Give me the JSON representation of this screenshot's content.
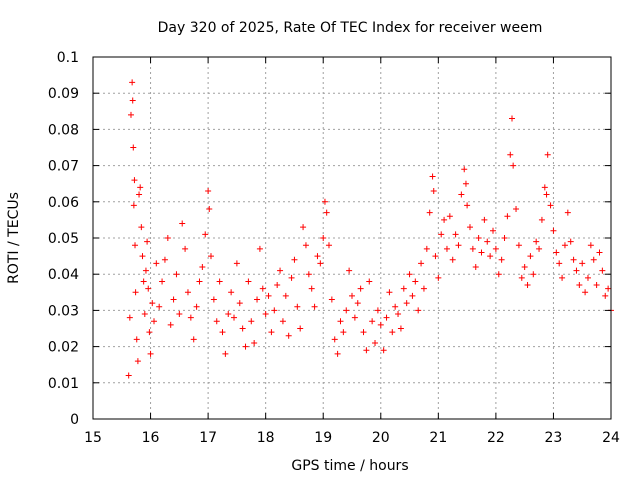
{
  "chart_data": {
    "type": "scatter",
    "title": "Day 320 of 2025, Rate Of TEC Index for receiver weem",
    "xlabel": "GPS time / hours",
    "ylabel": "ROTI / TECUs",
    "xlim": [
      15,
      24
    ],
    "ylim": [
      0,
      0.1
    ],
    "x_ticks": [
      "15",
      "16",
      "17",
      "18",
      "19",
      "20",
      "21",
      "22",
      "23",
      "24"
    ],
    "y_ticks": [
      "0",
      "0.01",
      "0.02",
      "0.03",
      "0.04",
      "0.05",
      "0.06",
      "0.07",
      "0.08",
      "0.09",
      "0.1"
    ],
    "grid": true,
    "marker": "+",
    "color": "#ff0000",
    "series": [
      {
        "points": [
          [
            15.62,
            0.012
          ],
          [
            15.64,
            0.028
          ],
          [
            15.66,
            0.084
          ],
          [
            15.68,
            0.093
          ],
          [
            15.69,
            0.088
          ],
          [
            15.7,
            0.075
          ],
          [
            15.71,
            0.059
          ],
          [
            15.72,
            0.066
          ],
          [
            15.73,
            0.048
          ],
          [
            15.74,
            0.035
          ],
          [
            15.76,
            0.022
          ],
          [
            15.78,
            0.016
          ],
          [
            15.8,
            0.062
          ],
          [
            15.82,
            0.064
          ],
          [
            15.84,
            0.053
          ],
          [
            15.86,
            0.045
          ],
          [
            15.88,
            0.038
          ],
          [
            15.9,
            0.029
          ],
          [
            15.92,
            0.041
          ],
          [
            15.94,
            0.049
          ],
          [
            15.96,
            0.036
          ],
          [
            15.98,
            0.024
          ],
          [
            16.0,
            0.018
          ],
          [
            16.03,
            0.032
          ],
          [
            16.06,
            0.027
          ],
          [
            16.1,
            0.043
          ],
          [
            16.15,
            0.031
          ],
          [
            16.2,
            0.038
          ],
          [
            16.25,
            0.044
          ],
          [
            16.3,
            0.05
          ],
          [
            16.35,
            0.026
          ],
          [
            16.4,
            0.033
          ],
          [
            16.45,
            0.04
          ],
          [
            16.5,
            0.029
          ],
          [
            16.55,
            0.054
          ],
          [
            16.6,
            0.047
          ],
          [
            16.65,
            0.035
          ],
          [
            16.7,
            0.028
          ],
          [
            16.75,
            0.022
          ],
          [
            16.8,
            0.031
          ],
          [
            16.85,
            0.038
          ],
          [
            16.9,
            0.042
          ],
          [
            16.95,
            0.051
          ],
          [
            17.0,
            0.063
          ],
          [
            17.02,
            0.058
          ],
          [
            17.05,
            0.045
          ],
          [
            17.1,
            0.033
          ],
          [
            17.15,
            0.027
          ],
          [
            17.2,
            0.038
          ],
          [
            17.25,
            0.024
          ],
          [
            17.3,
            0.018
          ],
          [
            17.35,
            0.029
          ],
          [
            17.4,
            0.035
          ],
          [
            17.45,
            0.028
          ],
          [
            17.5,
            0.043
          ],
          [
            17.55,
            0.032
          ],
          [
            17.6,
            0.025
          ],
          [
            17.65,
            0.02
          ],
          [
            17.7,
            0.038
          ],
          [
            17.75,
            0.027
          ],
          [
            17.8,
            0.021
          ],
          [
            17.85,
            0.033
          ],
          [
            17.9,
            0.047
          ],
          [
            17.95,
            0.036
          ],
          [
            18.0,
            0.029
          ],
          [
            18.05,
            0.034
          ],
          [
            18.1,
            0.024
          ],
          [
            18.15,
            0.03
          ],
          [
            18.2,
            0.037
          ],
          [
            18.25,
            0.041
          ],
          [
            18.3,
            0.027
          ],
          [
            18.35,
            0.034
          ],
          [
            18.4,
            0.023
          ],
          [
            18.45,
            0.039
          ],
          [
            18.5,
            0.044
          ],
          [
            18.55,
            0.031
          ],
          [
            18.6,
            0.025
          ],
          [
            18.65,
            0.053
          ],
          [
            18.7,
            0.048
          ],
          [
            18.75,
            0.04
          ],
          [
            18.8,
            0.036
          ],
          [
            18.85,
            0.031
          ],
          [
            18.9,
            0.045
          ],
          [
            18.95,
            0.043
          ],
          [
            19.0,
            0.05
          ],
          [
            19.03,
            0.06
          ],
          [
            19.06,
            0.057
          ],
          [
            19.1,
            0.048
          ],
          [
            19.15,
            0.033
          ],
          [
            19.2,
            0.022
          ],
          [
            19.25,
            0.018
          ],
          [
            19.3,
            0.027
          ],
          [
            19.35,
            0.024
          ],
          [
            19.4,
            0.03
          ],
          [
            19.45,
            0.041
          ],
          [
            19.5,
            0.034
          ],
          [
            19.55,
            0.028
          ],
          [
            19.6,
            0.032
          ],
          [
            19.65,
            0.036
          ],
          [
            19.7,
            0.024
          ],
          [
            19.75,
            0.019
          ],
          [
            19.8,
            0.038
          ],
          [
            19.85,
            0.027
          ],
          [
            19.9,
            0.021
          ],
          [
            19.95,
            0.03
          ],
          [
            20.0,
            0.026
          ],
          [
            20.05,
            0.019
          ],
          [
            20.1,
            0.028
          ],
          [
            20.15,
            0.035
          ],
          [
            20.2,
            0.024
          ],
          [
            20.25,
            0.031
          ],
          [
            20.3,
            0.029
          ],
          [
            20.35,
            0.025
          ],
          [
            20.4,
            0.036
          ],
          [
            20.45,
            0.032
          ],
          [
            20.5,
            0.04
          ],
          [
            20.55,
            0.034
          ],
          [
            20.6,
            0.038
          ],
          [
            20.65,
            0.03
          ],
          [
            20.7,
            0.043
          ],
          [
            20.75,
            0.036
          ],
          [
            20.8,
            0.047
          ],
          [
            20.85,
            0.057
          ],
          [
            20.9,
            0.067
          ],
          [
            20.92,
            0.063
          ],
          [
            20.95,
            0.045
          ],
          [
            21.0,
            0.039
          ],
          [
            21.05,
            0.051
          ],
          [
            21.1,
            0.055
          ],
          [
            21.15,
            0.047
          ],
          [
            21.2,
            0.056
          ],
          [
            21.25,
            0.044
          ],
          [
            21.3,
            0.051
          ],
          [
            21.35,
            0.048
          ],
          [
            21.4,
            0.062
          ],
          [
            21.45,
            0.069
          ],
          [
            21.48,
            0.065
          ],
          [
            21.5,
            0.059
          ],
          [
            21.55,
            0.053
          ],
          [
            21.6,
            0.047
          ],
          [
            21.65,
            0.042
          ],
          [
            21.7,
            0.05
          ],
          [
            21.75,
            0.046
          ],
          [
            21.8,
            0.055
          ],
          [
            21.85,
            0.049
          ],
          [
            21.9,
            0.045
          ],
          [
            21.95,
            0.052
          ],
          [
            22.0,
            0.047
          ],
          [
            22.05,
            0.04
          ],
          [
            22.1,
            0.044
          ],
          [
            22.15,
            0.05
          ],
          [
            22.2,
            0.056
          ],
          [
            22.25,
            0.073
          ],
          [
            22.28,
            0.083
          ],
          [
            22.3,
            0.07
          ],
          [
            22.35,
            0.058
          ],
          [
            22.4,
            0.048
          ],
          [
            22.45,
            0.039
          ],
          [
            22.5,
            0.042
          ],
          [
            22.55,
            0.037
          ],
          [
            22.6,
            0.045
          ],
          [
            22.65,
            0.04
          ],
          [
            22.7,
            0.049
          ],
          [
            22.75,
            0.047
          ],
          [
            22.8,
            0.055
          ],
          [
            22.85,
            0.064
          ],
          [
            22.88,
            0.062
          ],
          [
            22.9,
            0.073
          ],
          [
            22.95,
            0.059
          ],
          [
            23.0,
            0.052
          ],
          [
            23.05,
            0.046
          ],
          [
            23.1,
            0.043
          ],
          [
            23.15,
            0.039
          ],
          [
            23.2,
            0.048
          ],
          [
            23.25,
            0.057
          ],
          [
            23.3,
            0.049
          ],
          [
            23.35,
            0.044
          ],
          [
            23.4,
            0.041
          ],
          [
            23.45,
            0.037
          ],
          [
            23.5,
            0.043
          ],
          [
            23.55,
            0.035
          ],
          [
            23.6,
            0.039
          ],
          [
            23.65,
            0.048
          ],
          [
            23.7,
            0.044
          ],
          [
            23.75,
            0.037
          ],
          [
            23.8,
            0.046
          ],
          [
            23.85,
            0.041
          ],
          [
            23.9,
            0.034
          ],
          [
            23.95,
            0.036
          ],
          [
            24.0,
            0.03
          ]
        ]
      }
    ]
  }
}
